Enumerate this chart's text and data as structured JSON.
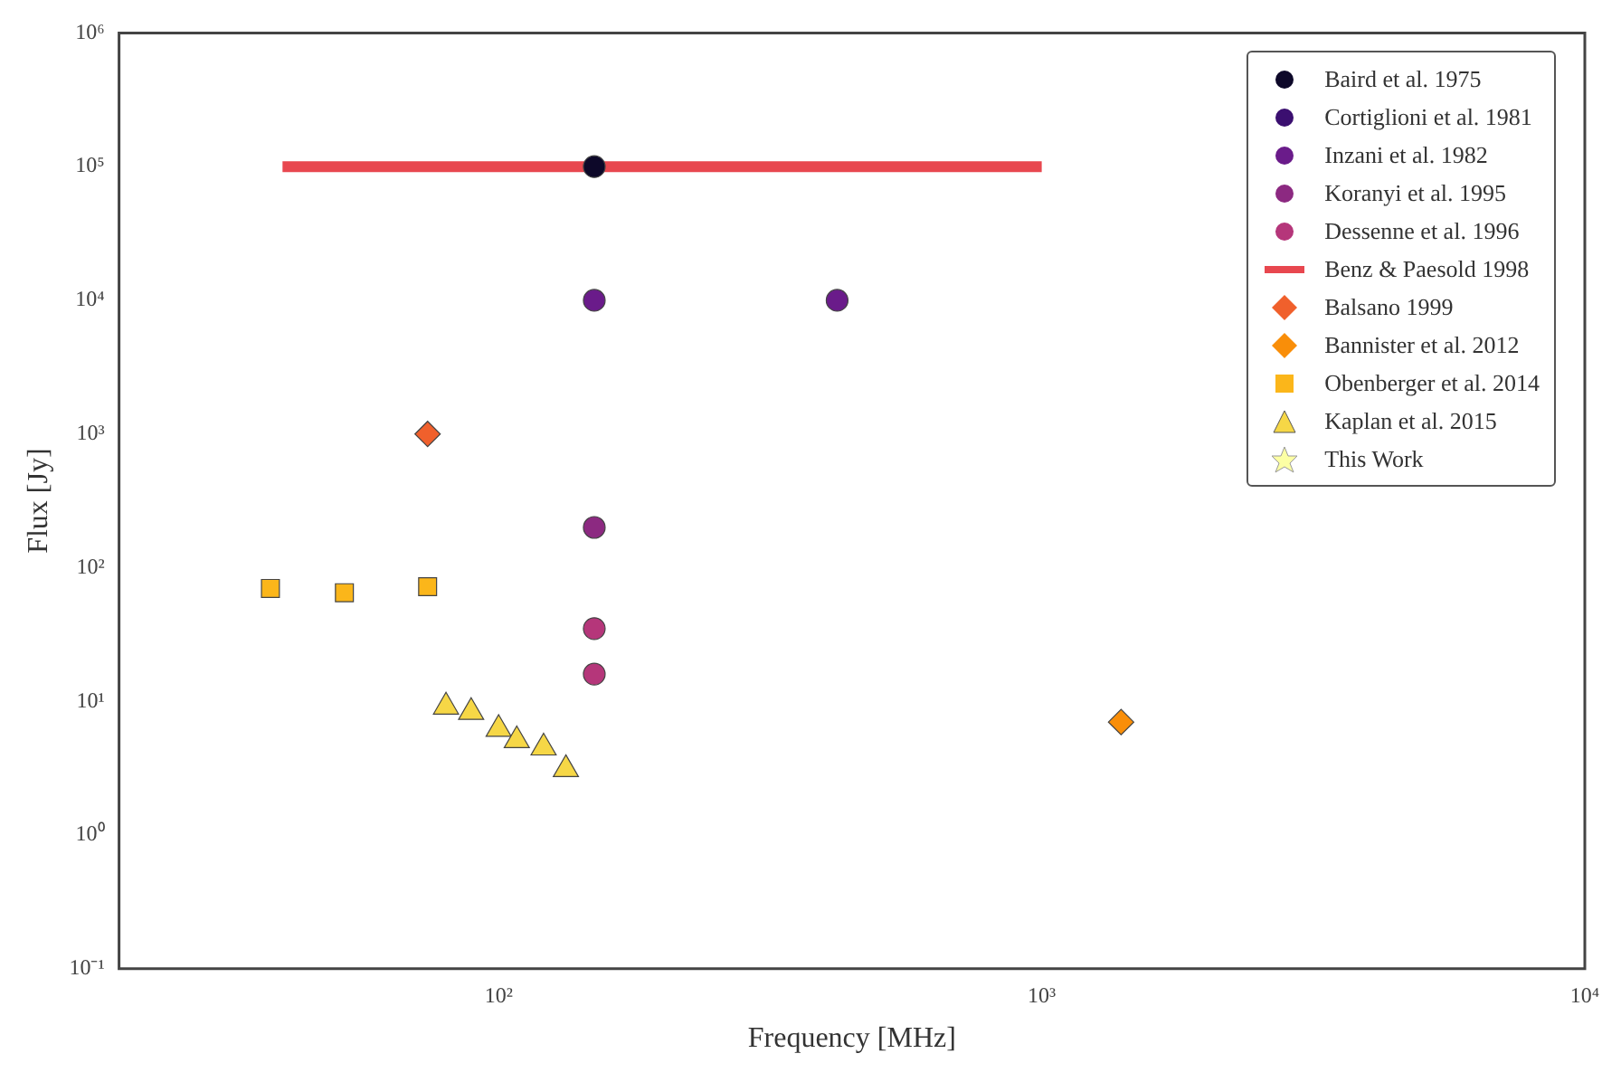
{
  "chart_data": {
    "type": "scatter",
    "xlabel": "Frequency [MHz]",
    "ylabel": "Flux [Jy]",
    "log": "xy",
    "grid": false,
    "legend": "top right",
    "xlim": [
      20,
      10000
    ],
    "xticks": [
      {
        "value": 100,
        "label": "10²"
      },
      {
        "value": 1000,
        "label": "10³"
      },
      {
        "value": 10000,
        "label": "10⁴"
      }
    ],
    "ylim": [
      0.1,
      1000000
    ],
    "yticks": [
      {
        "value": 0.1,
        "label": "10⁻¹"
      },
      {
        "value": 1,
        "label": "10⁰"
      },
      {
        "value": 10,
        "label": "10¹"
      },
      {
        "value": 100,
        "label": "10²"
      },
      {
        "value": 1000,
        "label": "10³"
      },
      {
        "value": 10000,
        "label": "10⁴"
      },
      {
        "value": 100000,
        "label": "10⁵"
      },
      {
        "value": 1000000,
        "label": "10⁶"
      }
    ],
    "series": [
      {
        "name": "Baird et al. 1975",
        "color": "#0d0829",
        "marker": "circle",
        "x": [
          150
        ],
        "values": [
          100000
        ]
      },
      {
        "name": "Cortiglioni et al. 1981",
        "color": "#3b0f70",
        "marker": "circle"
      },
      {
        "name": "Inzani et al. 1982",
        "color": "#6a1b8a",
        "marker": "circle",
        "x": [
          150,
          420
        ],
        "values": [
          10000,
          10000
        ]
      },
      {
        "name": "Koranyi et al. 1995",
        "color": "#8c2981",
        "marker": "circle",
        "x": [
          150
        ],
        "values": [
          200
        ]
      },
      {
        "name": "Dessenne et al. 1996",
        "color": "#b5367a",
        "marker": "circle",
        "x": [
          150,
          150
        ],
        "values": [
          35,
          16
        ]
      },
      {
        "name": "Benz & Paesold 1998",
        "type": "line",
        "color": "#e8474f",
        "marker": "none",
        "x": [
          40,
          1000
        ],
        "values": [
          100000,
          100000
        ]
      },
      {
        "name": "Balsano 1999",
        "color": "#f0602c",
        "marker": "diamond",
        "x": [
          74
        ],
        "values": [
          1000
        ]
      },
      {
        "name": "Bannister et al. 2012",
        "color": "#f98e09",
        "marker": "diamond",
        "x": [
          1400
        ],
        "values": [
          7
        ]
      },
      {
        "name": "Obenberger et al. 2014",
        "color": "#fbb61a",
        "marker": "square",
        "x": [
          38,
          52,
          74
        ],
        "values": [
          70,
          65,
          72
        ]
      },
      {
        "name": "Kaplan et al. 2015",
        "color": "#f6d746",
        "marker": "triangle",
        "x": [
          80,
          89,
          100,
          108,
          121,
          133
        ],
        "values": [
          9.1,
          8.3,
          6.2,
          5.1,
          4.5,
          3.1
        ]
      },
      {
        "name": "This Work",
        "color": "#fcffa4",
        "marker": "star"
      }
    ]
  }
}
